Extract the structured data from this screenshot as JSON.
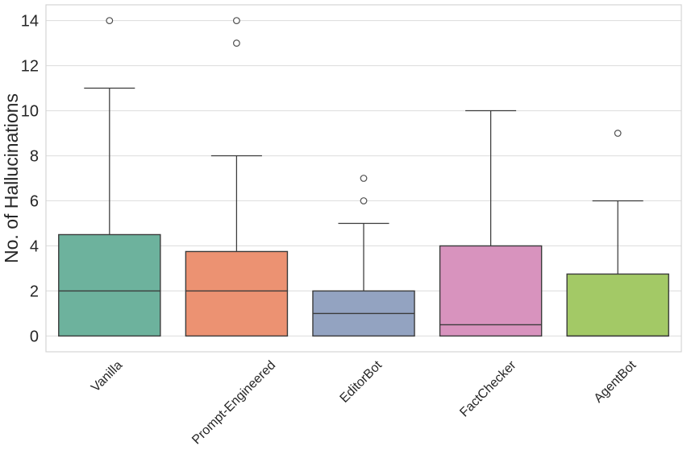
{
  "figure": {
    "background": "#ffffff",
    "plot_background": "#ffffff",
    "grid_color": "#e0e0e0",
    "spine_color": "#d4d4d4",
    "box_edge_color": "#3b3b3b",
    "outlier_stroke_color": "#4f4f4f",
    "text_color": "#262626"
  },
  "chart_data": {
    "type": "box",
    "title": "",
    "xlabel": "",
    "ylabel": "No. of Hallucinations",
    "ylim": [
      -0.7,
      14.7
    ],
    "yticks": [
      0,
      2,
      4,
      6,
      8,
      10,
      12,
      14
    ],
    "grid": true,
    "legend": false,
    "x_tick_rotation_deg": 45,
    "categories": [
      "Vanilla",
      "Prompt-Engineered",
      "EditorBot",
      "FactChecker",
      "AgentBot"
    ],
    "series": [
      {
        "name": "Vanilla",
        "color": "#6db29d",
        "whisker_low": 0,
        "q1": 0,
        "median": 2,
        "q3": 4.5,
        "whisker_high": 11,
        "outliers": [
          14
        ]
      },
      {
        "name": "Prompt-Engineered",
        "color": "#ec9272",
        "whisker_low": 0,
        "q1": 0,
        "median": 2,
        "q3": 3.75,
        "whisker_high": 8,
        "outliers": [
          13,
          14
        ]
      },
      {
        "name": "EditorBot",
        "color": "#93a3c1",
        "whisker_low": 0,
        "q1": 0,
        "median": 1,
        "q3": 2,
        "whisker_high": 5,
        "outliers": [
          6,
          7
        ]
      },
      {
        "name": "FactChecker",
        "color": "#d893be",
        "whisker_low": 0,
        "q1": 0,
        "median": 0.5,
        "q3": 4,
        "whisker_high": 10,
        "outliers": []
      },
      {
        "name": "AgentBot",
        "color": "#a3c966",
        "whisker_low": 0,
        "q1": 0,
        "median": 0,
        "q3": 2.75,
        "whisker_high": 6,
        "outliers": [
          9
        ]
      }
    ]
  }
}
